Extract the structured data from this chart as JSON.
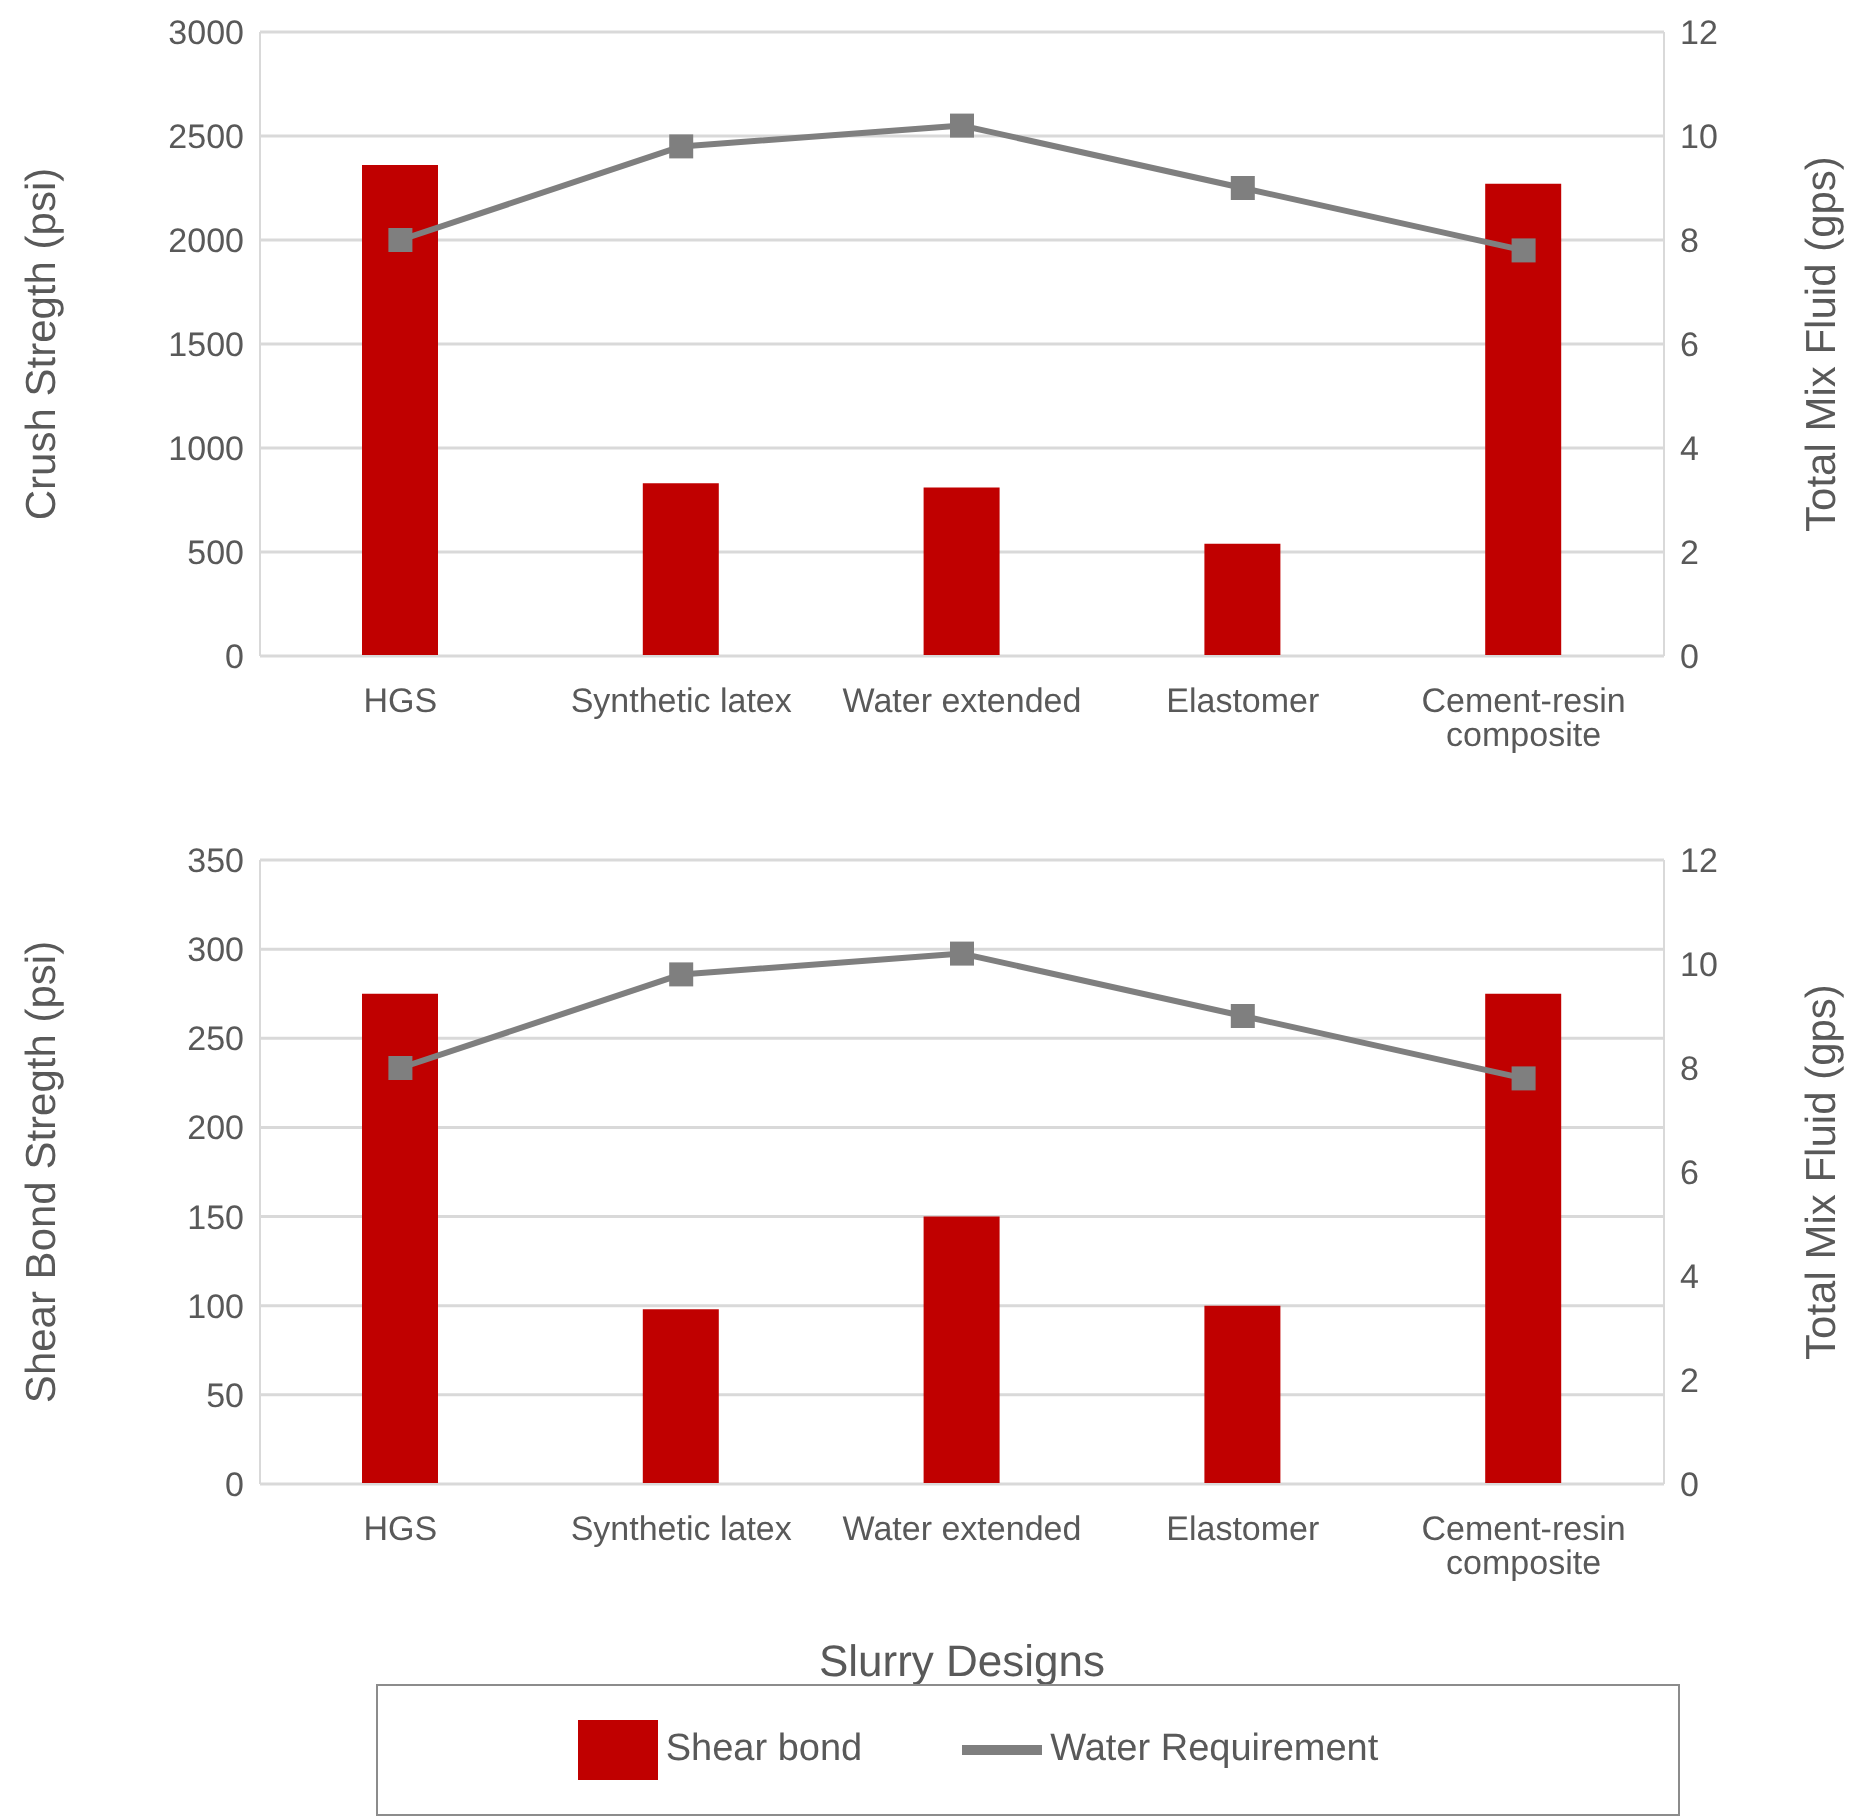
{
  "chart_data": [
    {
      "type": "bar",
      "categories": [
        "HGS",
        "Synthetic latex",
        "Water extended",
        "Elastomer",
        "Cement-resin composite"
      ],
      "ylabel": "Crush Stregth (psi)",
      "y2label": "Total Mix Fluid (gps)",
      "ylim": [
        0,
        3000
      ],
      "yticks": [
        0,
        500,
        1000,
        1500,
        2000,
        2500,
        3000
      ],
      "y2lim": [
        0,
        12
      ],
      "y2ticks": [
        0,
        2,
        4,
        6,
        8,
        10,
        12
      ],
      "grid": "y",
      "legend": false,
      "marker": "square",
      "series": [
        {
          "color": "#c00000",
          "values": [
            2360,
            830,
            810,
            540,
            2270
          ]
        },
        {
          "type": "line",
          "axis": "y2",
          "color": "#7f7f7f",
          "values": [
            8.0,
            9.8,
            10.2,
            9.0,
            7.8
          ]
        }
      ]
    },
    {
      "type": "bar",
      "categories": [
        "HGS",
        "Synthetic latex",
        "Water extended",
        "Elastomer",
        "Cement-resin composite"
      ],
      "xlabel": "Slurry Designs",
      "ylabel": "Shear Bond Stregth (psi)",
      "y2label": "Total Mix Fluid (gps)",
      "ylim": [
        0,
        350
      ],
      "yticks": [
        0,
        50,
        100,
        150,
        200,
        250,
        300,
        350
      ],
      "y2lim": [
        0,
        12
      ],
      "y2ticks": [
        0,
        2,
        4,
        6,
        8,
        10,
        12
      ],
      "grid": "y",
      "legend": "bottom",
      "marker": "square",
      "series": [
        {
          "name": "Shear bond",
          "color": "#c00000",
          "values": [
            275,
            98,
            150,
            100,
            275
          ]
        },
        {
          "type": "line",
          "name": "Water Requirement",
          "axis": "y2",
          "color": "#7f7f7f",
          "values": [
            8.0,
            9.8,
            10.2,
            9.0,
            7.8
          ]
        }
      ]
    }
  ]
}
